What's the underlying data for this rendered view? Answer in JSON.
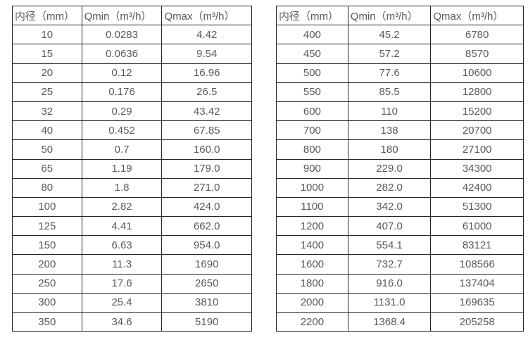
{
  "page": {
    "background_color": "#ffffff",
    "border_color": "#262626",
    "text_color": "#595959"
  },
  "tables": [
    {
      "headers": [
        "内径（mm）",
        "Qmin（m³/h）",
        "Qmax（m³/h）"
      ],
      "rows": [
        [
          "10",
          "0.0283",
          "4.42"
        ],
        [
          "15",
          "0.0636",
          "9.54"
        ],
        [
          "20",
          "0.12",
          "16.96"
        ],
        [
          "25",
          "0.176",
          "26.5"
        ],
        [
          "32",
          "0.29",
          "43.42"
        ],
        [
          "40",
          "0.452",
          "67.85"
        ],
        [
          "50",
          "0.7",
          "160.0"
        ],
        [
          "65",
          "1.19",
          "179.0"
        ],
        [
          "80",
          "1.8",
          "271.0"
        ],
        [
          "100",
          "2.82",
          "424.0"
        ],
        [
          "125",
          "4.41",
          "662.0"
        ],
        [
          "150",
          "6.63",
          "954.0"
        ],
        [
          "200",
          "11.3",
          "1690"
        ],
        [
          "250",
          "17.6",
          "2650"
        ],
        [
          "300",
          "25.4",
          "3810"
        ],
        [
          "350",
          "34.6",
          "5190"
        ]
      ]
    },
    {
      "headers": [
        "内径（mm）",
        "Qmin（m³/h）",
        "Qmax（m³/h）"
      ],
      "rows": [
        [
          "400",
          "45.2",
          "6780"
        ],
        [
          "450",
          "57.2",
          "8570"
        ],
        [
          "500",
          "77.6",
          "10600"
        ],
        [
          "550",
          "85.5",
          "12800"
        ],
        [
          "600",
          "110",
          "15200"
        ],
        [
          "700",
          "138",
          "20700"
        ],
        [
          "800",
          "180",
          "27100"
        ],
        [
          "900",
          "229.0",
          "34300"
        ],
        [
          "1000",
          "282.0",
          "42400"
        ],
        [
          "1100",
          "342.0",
          "51300"
        ],
        [
          "1200",
          "407.0",
          "61000"
        ],
        [
          "1400",
          "554.1",
          "83121"
        ],
        [
          "1600",
          "732.7",
          "108566"
        ],
        [
          "1800",
          "916.0",
          "137404"
        ],
        [
          "2000",
          "1131.0",
          "169635"
        ],
        [
          "2200",
          "1368.4",
          "205258"
        ]
      ]
    }
  ]
}
